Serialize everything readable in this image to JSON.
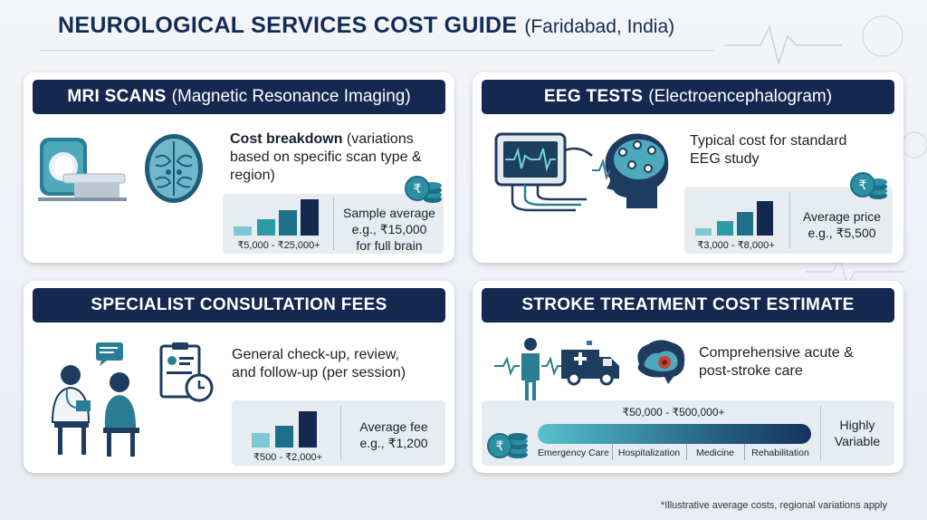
{
  "header": {
    "title_main": "NEUROLOGICAL SERVICES COST GUIDE",
    "title_sub": "(Faridabad, India)"
  },
  "colors": {
    "navy": "#15284f",
    "teal": "#1f8a99",
    "light_teal": "#66bfcc",
    "panel": "#e7ecf1"
  },
  "mri": {
    "title_bold": "MRI SCANS",
    "title_rest": "(Magnetic Resonance Imaging)",
    "desc_bold": "Cost breakdown",
    "desc_rest": "(variations based on specific scan type & region)",
    "range": "₹5,000 - ₹25,000+",
    "avg_line1": "Sample average",
    "avg_line2": "e.g., ₹15,000",
    "avg_line3": "for full brain",
    "icons": [
      "mri-machine-icon",
      "brain-scan-icon",
      "rupee-coins-icon"
    ]
  },
  "eeg": {
    "title_bold": "EEG TESTS",
    "title_rest": "(Electroencephalogram)",
    "desc_line1": "Typical cost for standard",
    "desc_line2": "EEG study",
    "range": "₹3,000 - ₹8,000+",
    "avg_line1": "Average price",
    "avg_line2": "e.g., ₹5,500",
    "icons": [
      "eeg-monitor-icon",
      "head-electrodes-icon",
      "rupee-coins-icon"
    ]
  },
  "consult": {
    "title": "SPECIALIST CONSULTATION FEES",
    "desc_line1": "General check-up, review,",
    "desc_line2": "and follow-up (per session)",
    "range": "₹500 - ₹2,000+",
    "avg_line1": "Average fee",
    "avg_line2": "e.g., ₹1,200",
    "icons": [
      "doctor-patient-icon",
      "appointment-clipboard-icon"
    ]
  },
  "stroke": {
    "title": "STROKE TREATMENT COST ESTIMATE",
    "desc_line1": "Comprehensive acute &",
    "desc_line2": "post-stroke care",
    "range": "₹50,000 - ₹500,000+",
    "stages": [
      "Emergency Care",
      "Hospitalization",
      "Medicine",
      "Rehabilitation"
    ],
    "variability_line1": "Highly",
    "variability_line2": "Variable",
    "icons": [
      "patient-pulse-icon",
      "ambulance-icon",
      "brain-stroke-icon",
      "rupee-coins-icon"
    ]
  },
  "footnote": "*Illustrative average costs, regional variations apply"
}
